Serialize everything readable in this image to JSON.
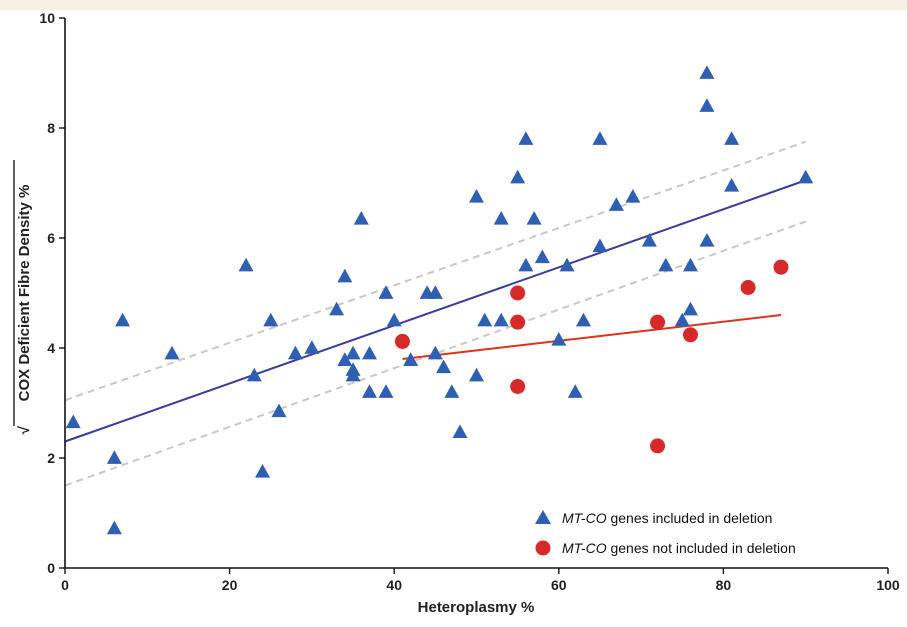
{
  "chart_data": {
    "type": "scatter",
    "xlabel": "Heteroplasmy %",
    "ylabel": "COX Deficient Fibre Density %",
    "ylabel_root_symbol": "√",
    "xlim": [
      0,
      100
    ],
    "ylim": [
      0,
      10
    ],
    "xticks": [
      "0",
      "20",
      "40",
      "60",
      "80",
      "100"
    ],
    "yticks": [
      "0",
      "2",
      "4",
      "6",
      "8",
      "10"
    ],
    "grid": false,
    "legend_position": "bottom-right",
    "series": [
      {
        "name_italic": "MT-CO",
        "name_rest": " genes included in deletion",
        "marker": "triangle",
        "color": "#2f5fb3",
        "points": [
          [
            1,
            2.65
          ],
          [
            6,
            2.0
          ],
          [
            6,
            0.72
          ],
          [
            7,
            4.5
          ],
          [
            13,
            3.9
          ],
          [
            22,
            5.5
          ],
          [
            23,
            3.5
          ],
          [
            24,
            1.75
          ],
          [
            25,
            4.5
          ],
          [
            26,
            2.85
          ],
          [
            28,
            3.9
          ],
          [
            30,
            4.0
          ],
          [
            33,
            4.7
          ],
          [
            34,
            5.3
          ],
          [
            34,
            3.78
          ],
          [
            35,
            3.6
          ],
          [
            35,
            3.5
          ],
          [
            35,
            3.9
          ],
          [
            36,
            6.35
          ],
          [
            37,
            3.9
          ],
          [
            37,
            3.2
          ],
          [
            39,
            5.0
          ],
          [
            39,
            3.2
          ],
          [
            40,
            4.5
          ],
          [
            42,
            3.78
          ],
          [
            44,
            5.0
          ],
          [
            45,
            5.0
          ],
          [
            45,
            3.9
          ],
          [
            46,
            3.65
          ],
          [
            47,
            3.2
          ],
          [
            48,
            2.47
          ],
          [
            50,
            6.75
          ],
          [
            50,
            3.5
          ],
          [
            51,
            4.5
          ],
          [
            53,
            6.35
          ],
          [
            53,
            4.5
          ],
          [
            55,
            7.1
          ],
          [
            56,
            7.8
          ],
          [
            56,
            5.5
          ],
          [
            57,
            6.35
          ],
          [
            58,
            5.65
          ],
          [
            60,
            4.15
          ],
          [
            61,
            5.5
          ],
          [
            62,
            3.2
          ],
          [
            63,
            4.5
          ],
          [
            65,
            7.8
          ],
          [
            65,
            5.85
          ],
          [
            67,
            6.6
          ],
          [
            69,
            6.75
          ],
          [
            71,
            5.95
          ],
          [
            73,
            5.5
          ],
          [
            75,
            4.5
          ],
          [
            76,
            4.7
          ],
          [
            76,
            5.5
          ],
          [
            78,
            9.0
          ],
          [
            78,
            8.4
          ],
          [
            78,
            5.95
          ],
          [
            81,
            7.8
          ],
          [
            81,
            6.95
          ],
          [
            90,
            7.1
          ]
        ],
        "fit": {
          "x": [
            0,
            90
          ],
          "y": [
            2.3,
            7.05
          ],
          "color": "#3a3aa0"
        },
        "ci_upper": {
          "x": [
            0,
            90
          ],
          "y": [
            3.05,
            7.75
          ]
        },
        "ci_lower": {
          "x": [
            0,
            90
          ],
          "y": [
            1.5,
            6.3
          ]
        }
      },
      {
        "name_italic": "MT-CO",
        "name_rest": " genes not included in deletion",
        "marker": "circle",
        "color": "#d62a2a",
        "points": [
          [
            41,
            4.12
          ],
          [
            55,
            5.0
          ],
          [
            55,
            4.47
          ],
          [
            55,
            3.3
          ],
          [
            72,
            4.47
          ],
          [
            72,
            2.22
          ],
          [
            76,
            4.24
          ],
          [
            83,
            5.1
          ],
          [
            87,
            5.47
          ]
        ],
        "fit": {
          "x": [
            41,
            87
          ],
          "y": [
            3.8,
            4.6
          ],
          "color": "#e0301e"
        }
      }
    ]
  },
  "colors": {
    "ci_band": "#c8c8c8",
    "axis": "#111111"
  }
}
